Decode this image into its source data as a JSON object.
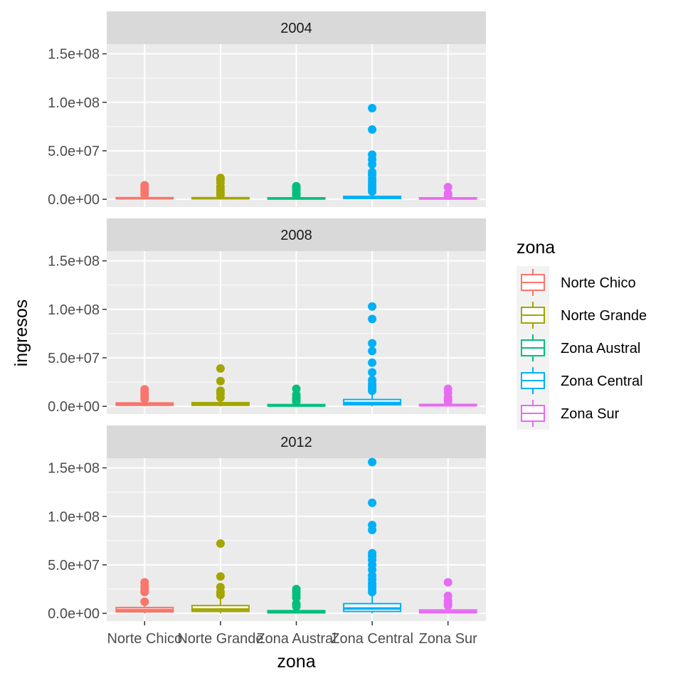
{
  "chart_data": {
    "type": "boxplot",
    "title": "",
    "xlabel": "zona",
    "ylabel": "ingresos",
    "legend_title": "zona",
    "legend_position": "right",
    "categories": [
      "Norte Chico",
      "Norte Grande",
      "Zona Austral",
      "Zona Central",
      "Zona Sur"
    ],
    "colors": [
      "#F8766D",
      "#A3A500",
      "#00BF7D",
      "#00B0F6",
      "#E76BF3"
    ],
    "ylim": [
      -8000000,
      160000000
    ],
    "yticks": [
      0,
      50000000,
      100000000,
      150000000
    ],
    "ytick_labels": [
      "0.0e+00",
      "5.0e+07",
      "1.0e+08",
      "1.5e+08"
    ],
    "grid": true,
    "panels": [
      {
        "label": "2004",
        "boxes": [
          {
            "q1": 500000,
            "median": 1000000,
            "q3": 1700000,
            "whisker_low": 0,
            "whisker_high": 3500000,
            "outliers": [
              5000000,
              7500000,
              10000000,
              12000000,
              14500000
            ]
          },
          {
            "q1": 500000,
            "median": 1000000,
            "q3": 1700000,
            "whisker_low": 0,
            "whisker_high": 3500000,
            "outliers": [
              4500000,
              7000000,
              10000000,
              13000000,
              17000000,
              20000000,
              22000000
            ]
          },
          {
            "q1": 300000,
            "median": 800000,
            "q3": 1500000,
            "whisker_low": 0,
            "whisker_high": 3000000,
            "outliers": [
              4000000,
              6000000,
              8000000,
              10000000,
              12000000,
              13500000
            ]
          },
          {
            "q1": 800000,
            "median": 1500000,
            "q3": 3000000,
            "whisker_low": 0,
            "whisker_high": 6000000,
            "outliers": [
              8000000,
              10000000,
              12000000,
              15000000,
              18000000,
              21000000,
              25000000,
              28000000,
              36000000,
              41000000,
              46000000,
              72000000,
              94000000
            ]
          },
          {
            "q1": 300000,
            "median": 800000,
            "q3": 1500000,
            "whisker_low": 0,
            "whisker_high": 3000000,
            "outliers": [
              4000000,
              6000000,
              12500000
            ]
          }
        ]
      },
      {
        "label": "2008",
        "boxes": [
          {
            "q1": 1000000,
            "median": 2000000,
            "q3": 3500000,
            "whisker_low": 0,
            "whisker_high": 6000000,
            "outliers": [
              7500000,
              10000000,
              12000000,
              15000000,
              17500000
            ]
          },
          {
            "q1": 1000000,
            "median": 2000000,
            "q3": 3800000,
            "whisker_low": 0,
            "whisker_high": 7000000,
            "outliers": [
              9000000,
              13000000,
              16000000,
              26000000,
              39000000
            ]
          },
          {
            "q1": 300000,
            "median": 800000,
            "q3": 1800000,
            "whisker_low": 0,
            "whisker_high": 3500000,
            "outliers": [
              5000000,
              7000000,
              9000000,
              12000000,
              18000000
            ]
          },
          {
            "q1": 1500000,
            "median": 3500000,
            "q3": 7000000,
            "whisker_low": 0,
            "whisker_high": 14000000,
            "outliers": [
              16000000,
              18000000,
              20000000,
              23000000,
              27000000,
              35000000,
              45000000,
              57000000,
              65000000,
              90000000,
              103000000
            ]
          },
          {
            "q1": 500000,
            "median": 1000000,
            "q3": 2000000,
            "whisker_low": 0,
            "whisker_high": 4000000,
            "outliers": [
              5000000,
              7000000,
              9000000,
              14000000,
              18000000
            ]
          }
        ]
      },
      {
        "label": "2012",
        "boxes": [
          {
            "q1": 1500000,
            "median": 3500000,
            "q3": 6000000,
            "whisker_low": 0,
            "whisker_high": 10000000,
            "outliers": [
              12000000,
              22000000,
              25000000,
              28000000,
              32000000
            ]
          },
          {
            "q1": 2000000,
            "median": 4000000,
            "q3": 8000000,
            "whisker_low": 0,
            "whisker_high": 15000000,
            "outliers": [
              19000000,
              22000000,
              27000000,
              38000000,
              72000000
            ]
          },
          {
            "q1": 500000,
            "median": 1200000,
            "q3": 2800000,
            "whisker_low": 0,
            "whisker_high": 5500000,
            "outliers": [
              7000000,
              9000000,
              10000000,
              16000000,
              19000000,
              22000000,
              25000000
            ]
          },
          {
            "q1": 2000000,
            "median": 5000000,
            "q3": 10000000,
            "whisker_low": 0,
            "whisker_high": 20000000,
            "outliers": [
              22000000,
              25000000,
              28000000,
              31000000,
              35000000,
              39000000,
              45000000,
              50000000,
              55000000,
              59000000,
              62000000,
              86000000,
              91000000,
              114000000,
              156000000
            ]
          },
          {
            "q1": 500000,
            "median": 1500000,
            "q3": 3500000,
            "whisker_low": 0,
            "whisker_high": 6500000,
            "outliers": [
              8000000,
              10000000,
              13000000,
              18000000,
              32000000
            ]
          }
        ]
      }
    ]
  }
}
